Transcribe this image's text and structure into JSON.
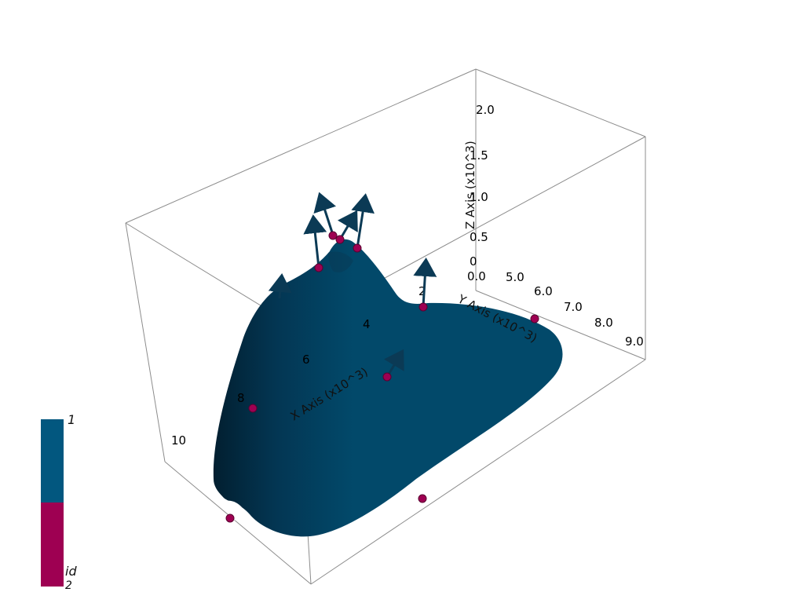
{
  "scene": {
    "axes": {
      "x_title": "X Axis (x10^3)",
      "y_title": "Y Axis (x10^3)",
      "z_title": "Z Axis (x10^3)",
      "x_ticks": [
        "2",
        "4",
        "6",
        "8",
        "10"
      ],
      "y_ticks": [
        "5.0",
        "6.0",
        "7.0",
        "8.0",
        "9.0"
      ],
      "z_ticks": [
        "0",
        "0.5",
        "1.0",
        "1.5",
        "2.0"
      ],
      "z_origin_label": "0.0"
    },
    "colorbar": {
      "title": "id",
      "top_label": "1",
      "bottom_label": "2",
      "top_color": "#02577f",
      "bottom_color": "#9e0052"
    },
    "colors": {
      "surface": "#02496a",
      "points": "#9e0052",
      "arrows": "#0b3a55",
      "bounding_box": "#8c8c8c"
    }
  }
}
